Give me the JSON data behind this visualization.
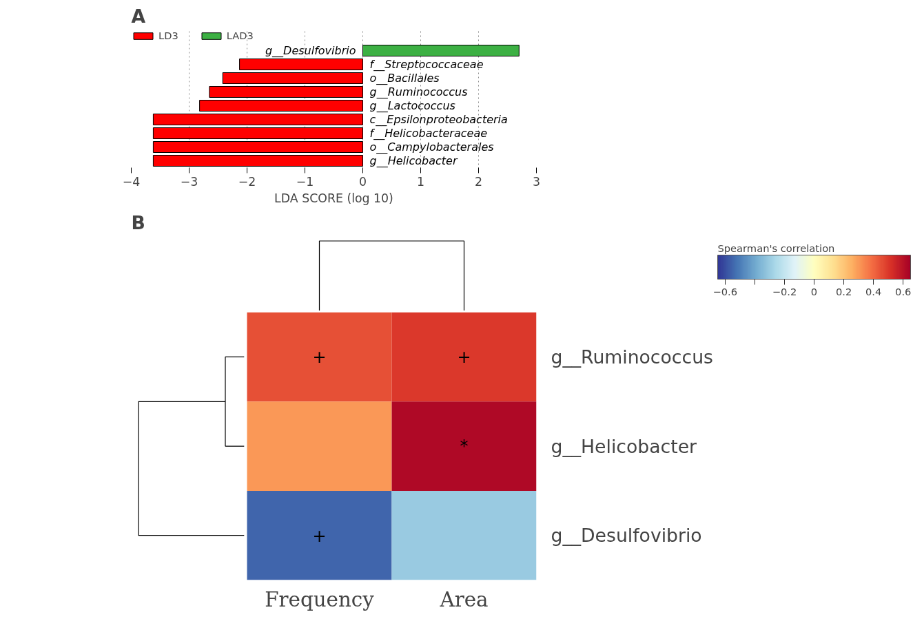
{
  "chart_data": [
    {
      "type": "bar",
      "orientation": "horizontal",
      "xlabel": "LDA SCORE (log 10)",
      "annotations": [
        "A"
      ],
      "categories": [
        "g__Desulfovibrio",
        "f__Streptococcaceae",
        "o__Bacillales",
        "g__Ruminococcus",
        "g__Lactococcus",
        "c__Epsilonproteobacteria",
        "f__Helicobacteraceae",
        "o__Campylobacterales",
        "g__Helicobacter"
      ],
      "series": [
        {
          "name": "LD3",
          "color": "#ff0000",
          "values": [
            null,
            -2.13,
            -2.42,
            -2.65,
            -2.82,
            -3.62,
            -3.62,
            -3.62,
            -3.62
          ]
        },
        {
          "name": "LAD3",
          "color": "#3cb043",
          "values": [
            2.7,
            null,
            null,
            null,
            null,
            null,
            null,
            null,
            null
          ]
        }
      ],
      "xlim": [
        -4,
        3
      ],
      "xticks": [
        -4,
        -3,
        -2,
        -1,
        0,
        1,
        2,
        3
      ],
      "grid": "x",
      "legend": "top left",
      "tick_labels": "x"
    },
    {
      "type": "heatmap",
      "annotations": [
        "B"
      ],
      "clabel": "Spearman's correlation",
      "categories": [
        "Frequency",
        "Area"
      ],
      "y_categories": [
        "g__Ruminococcus",
        "g__Helicobacter",
        "g__Desulfovibrio"
      ],
      "cells": [
        [
          0.45,
          0.5
        ],
        [
          0.3,
          0.62
        ],
        [
          -0.55,
          -0.3
        ]
      ],
      "cell_labels": [
        [
          "+",
          "+"
        ],
        [
          null,
          "*"
        ],
        [
          "+",
          null
        ]
      ],
      "clim": [
        -0.65,
        0.65
      ],
      "cticks": [
        -0.6,
        {
          "value": -0.4,
          "label": null
        },
        -0.2,
        0,
        0.2,
        0.4,
        0.6
      ]
    }
  ]
}
